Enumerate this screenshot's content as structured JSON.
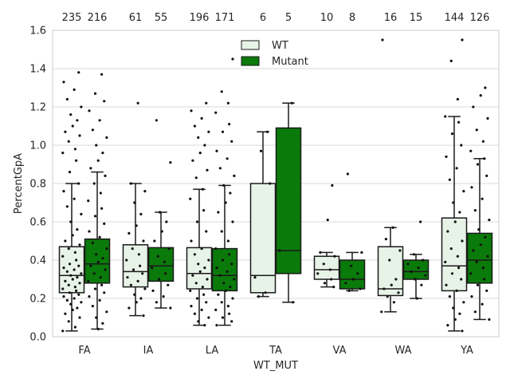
{
  "chart_data": {
    "type": "box",
    "xlabel": "WT_MUT",
    "ylabel": "PercentGpA",
    "ylim": [
      0,
      1.6
    ],
    "yticks": [
      0.0,
      0.2,
      0.4,
      0.6,
      0.8,
      1.0,
      1.2,
      1.4,
      1.6
    ],
    "ytick_labels": [
      "0.0",
      "0.2",
      "0.4",
      "0.6",
      "0.8",
      "1.0",
      "1.2",
      "1.4",
      "1.6"
    ],
    "grid": true,
    "legend_position": "top-center",
    "categories": [
      "FA",
      "IA",
      "LA",
      "TA",
      "VA",
      "WA",
      "YA"
    ],
    "colors": {
      "WT": "#e8f3e8",
      "Mutant": "#0a7a0a",
      "edge": "#1a1a1a",
      "grid": "#d8d8d8",
      "point": "#111111"
    },
    "series": [
      {
        "name": "WT",
        "counts": [
          "235",
          "61",
          "196",
          "6",
          "10",
          "16",
          "144"
        ],
        "boxes": [
          {
            "q1": 0.23,
            "median": 0.32,
            "q3": 0.47,
            "whislo": 0.03,
            "whishi": 0.8
          },
          {
            "q1": 0.26,
            "median": 0.34,
            "q3": 0.48,
            "whislo": 0.11,
            "whishi": 0.8
          },
          {
            "q1": 0.25,
            "median": 0.33,
            "q3": 0.465,
            "whislo": 0.06,
            "whishi": 0.77
          },
          {
            "q1": 0.23,
            "median": 0.32,
            "q3": 0.8,
            "whislo": 0.21,
            "whishi": 1.07
          },
          {
            "q1": 0.3,
            "median": 0.35,
            "q3": 0.42,
            "whislo": 0.26,
            "whishi": 0.44
          },
          {
            "q1": 0.215,
            "median": 0.25,
            "q3": 0.47,
            "whislo": 0.13,
            "whishi": 0.57
          },
          {
            "q1": 0.24,
            "median": 0.37,
            "q3": 0.62,
            "whislo": 0.03,
            "whishi": 1.15
          }
        ],
        "points": [
          [
            0.03,
            0.05,
            0.08,
            0.1,
            0.12,
            0.14,
            0.15,
            0.17,
            0.18,
            0.19,
            0.2,
            0.21,
            0.22,
            0.23,
            0.24,
            0.25,
            0.26,
            0.27,
            0.28,
            0.29,
            0.3,
            0.31,
            0.32,
            0.33,
            0.34,
            0.35,
            0.36,
            0.37,
            0.38,
            0.4,
            0.42,
            0.44,
            0.46,
            0.48,
            0.5,
            0.53,
            0.56,
            0.6,
            0.64,
            0.68,
            0.72,
            0.76,
            0.8,
            0.86,
            0.92,
            0.96,
            0.98,
            1.02,
            1.05,
            1.07,
            1.1,
            1.13,
            1.16,
            1.2,
            1.24,
            1.29,
            1.33,
            1.38
          ],
          [
            0.11,
            0.15,
            0.18,
            0.2,
            0.22,
            0.25,
            0.27,
            0.29,
            0.31,
            0.33,
            0.35,
            0.37,
            0.4,
            0.43,
            0.46,
            0.5,
            0.54,
            0.58,
            0.64,
            0.7,
            0.76,
            0.8,
            1.22
          ],
          [
            0.06,
            0.08,
            0.1,
            0.12,
            0.14,
            0.16,
            0.18,
            0.2,
            0.22,
            0.24,
            0.26,
            0.28,
            0.3,
            0.32,
            0.34,
            0.36,
            0.38,
            0.4,
            0.43,
            0.46,
            0.5,
            0.55,
            0.6,
            0.66,
            0.72,
            0.77,
            0.83,
            0.87,
            0.92,
            0.96,
            1.0,
            1.04,
            1.07,
            1.1,
            1.14,
            1.18,
            1.22
          ],
          [
            0.21,
            0.23,
            0.31,
            0.8,
            0.97,
            1.07
          ],
          [
            0.26,
            0.28,
            0.3,
            0.33,
            0.35,
            0.38,
            0.42,
            0.44,
            0.61,
            0.79
          ],
          [
            0.13,
            0.18,
            0.21,
            0.23,
            0.25,
            0.27,
            0.3,
            0.4,
            0.45,
            0.51,
            0.57,
            1.55
          ],
          [
            0.03,
            0.06,
            0.09,
            0.12,
            0.15,
            0.18,
            0.21,
            0.24,
            0.27,
            0.3,
            0.33,
            0.36,
            0.39,
            0.42,
            0.46,
            0.5,
            0.55,
            0.6,
            0.65,
            0.7,
            0.76,
            0.82,
            0.88,
            0.94,
            1.0,
            1.06,
            1.12,
            1.15,
            1.24,
            1.44,
            1.55
          ]
        ]
      },
      {
        "name": "Mutant",
        "counts": [
          "216",
          "55",
          "171",
          "5",
          "8",
          "15",
          "126"
        ],
        "boxes": [
          {
            "q1": 0.28,
            "median": 0.38,
            "q3": 0.51,
            "whislo": 0.04,
            "whishi": 0.86
          },
          {
            "q1": 0.29,
            "median": 0.37,
            "q3": 0.465,
            "whislo": 0.15,
            "whishi": 0.65
          },
          {
            "q1": 0.24,
            "median": 0.32,
            "q3": 0.46,
            "whislo": 0.06,
            "whishi": 0.79
          },
          {
            "q1": 0.33,
            "median": 0.45,
            "q3": 1.09,
            "whislo": 0.18,
            "whishi": 1.22
          },
          {
            "q1": 0.25,
            "median": 0.3,
            "q3": 0.4,
            "whislo": 0.24,
            "whishi": 0.44
          },
          {
            "q1": 0.3,
            "median": 0.34,
            "q3": 0.4,
            "whislo": 0.2,
            "whishi": 0.43
          },
          {
            "q1": 0.28,
            "median": 0.4,
            "q3": 0.54,
            "whislo": 0.09,
            "whishi": 0.93
          }
        ],
        "points": [
          [
            0.04,
            0.07,
            0.1,
            0.13,
            0.16,
            0.19,
            0.21,
            0.23,
            0.25,
            0.27,
            0.29,
            0.31,
            0.33,
            0.35,
            0.37,
            0.39,
            0.41,
            0.43,
            0.46,
            0.49,
            0.52,
            0.55,
            0.59,
            0.63,
            0.67,
            0.71,
            0.75,
            0.8,
            0.84,
            0.88,
            0.92,
            0.96,
            1.0,
            1.04,
            1.08,
            1.13,
            1.18,
            1.23,
            1.27,
            1.37
          ],
          [
            0.15,
            0.18,
            0.21,
            0.24,
            0.27,
            0.3,
            0.33,
            0.36,
            0.39,
            0.42,
            0.46,
            0.5,
            0.55,
            0.6,
            0.65,
            0.91,
            1.13
          ],
          [
            0.06,
            0.08,
            0.1,
            0.12,
            0.14,
            0.16,
            0.18,
            0.2,
            0.22,
            0.24,
            0.26,
            0.28,
            0.3,
            0.32,
            0.34,
            0.36,
            0.38,
            0.4,
            0.43,
            0.46,
            0.5,
            0.55,
            0.6,
            0.65,
            0.7,
            0.75,
            0.79,
            0.84,
            0.88,
            0.93,
            0.97,
            1.02,
            1.07,
            1.11,
            1.17,
            1.22,
            1.28,
            1.45
          ],
          [
            0.18,
            0.45,
            1.22
          ],
          [
            0.24,
            0.25,
            0.28,
            0.3,
            0.33,
            0.37,
            0.44,
            0.85
          ],
          [
            0.2,
            0.27,
            0.3,
            0.32,
            0.34,
            0.36,
            0.38,
            0.4,
            0.43,
            0.6
          ],
          [
            0.09,
            0.13,
            0.17,
            0.21,
            0.24,
            0.27,
            0.3,
            0.33,
            0.36,
            0.39,
            0.42,
            0.45,
            0.48,
            0.52,
            0.56,
            0.61,
            0.66,
            0.72,
            0.78,
            0.84,
            0.9,
            0.93,
            0.97,
            1.02,
            1.08,
            1.14,
            1.2,
            1.26,
            1.3
          ]
        ]
      }
    ]
  }
}
